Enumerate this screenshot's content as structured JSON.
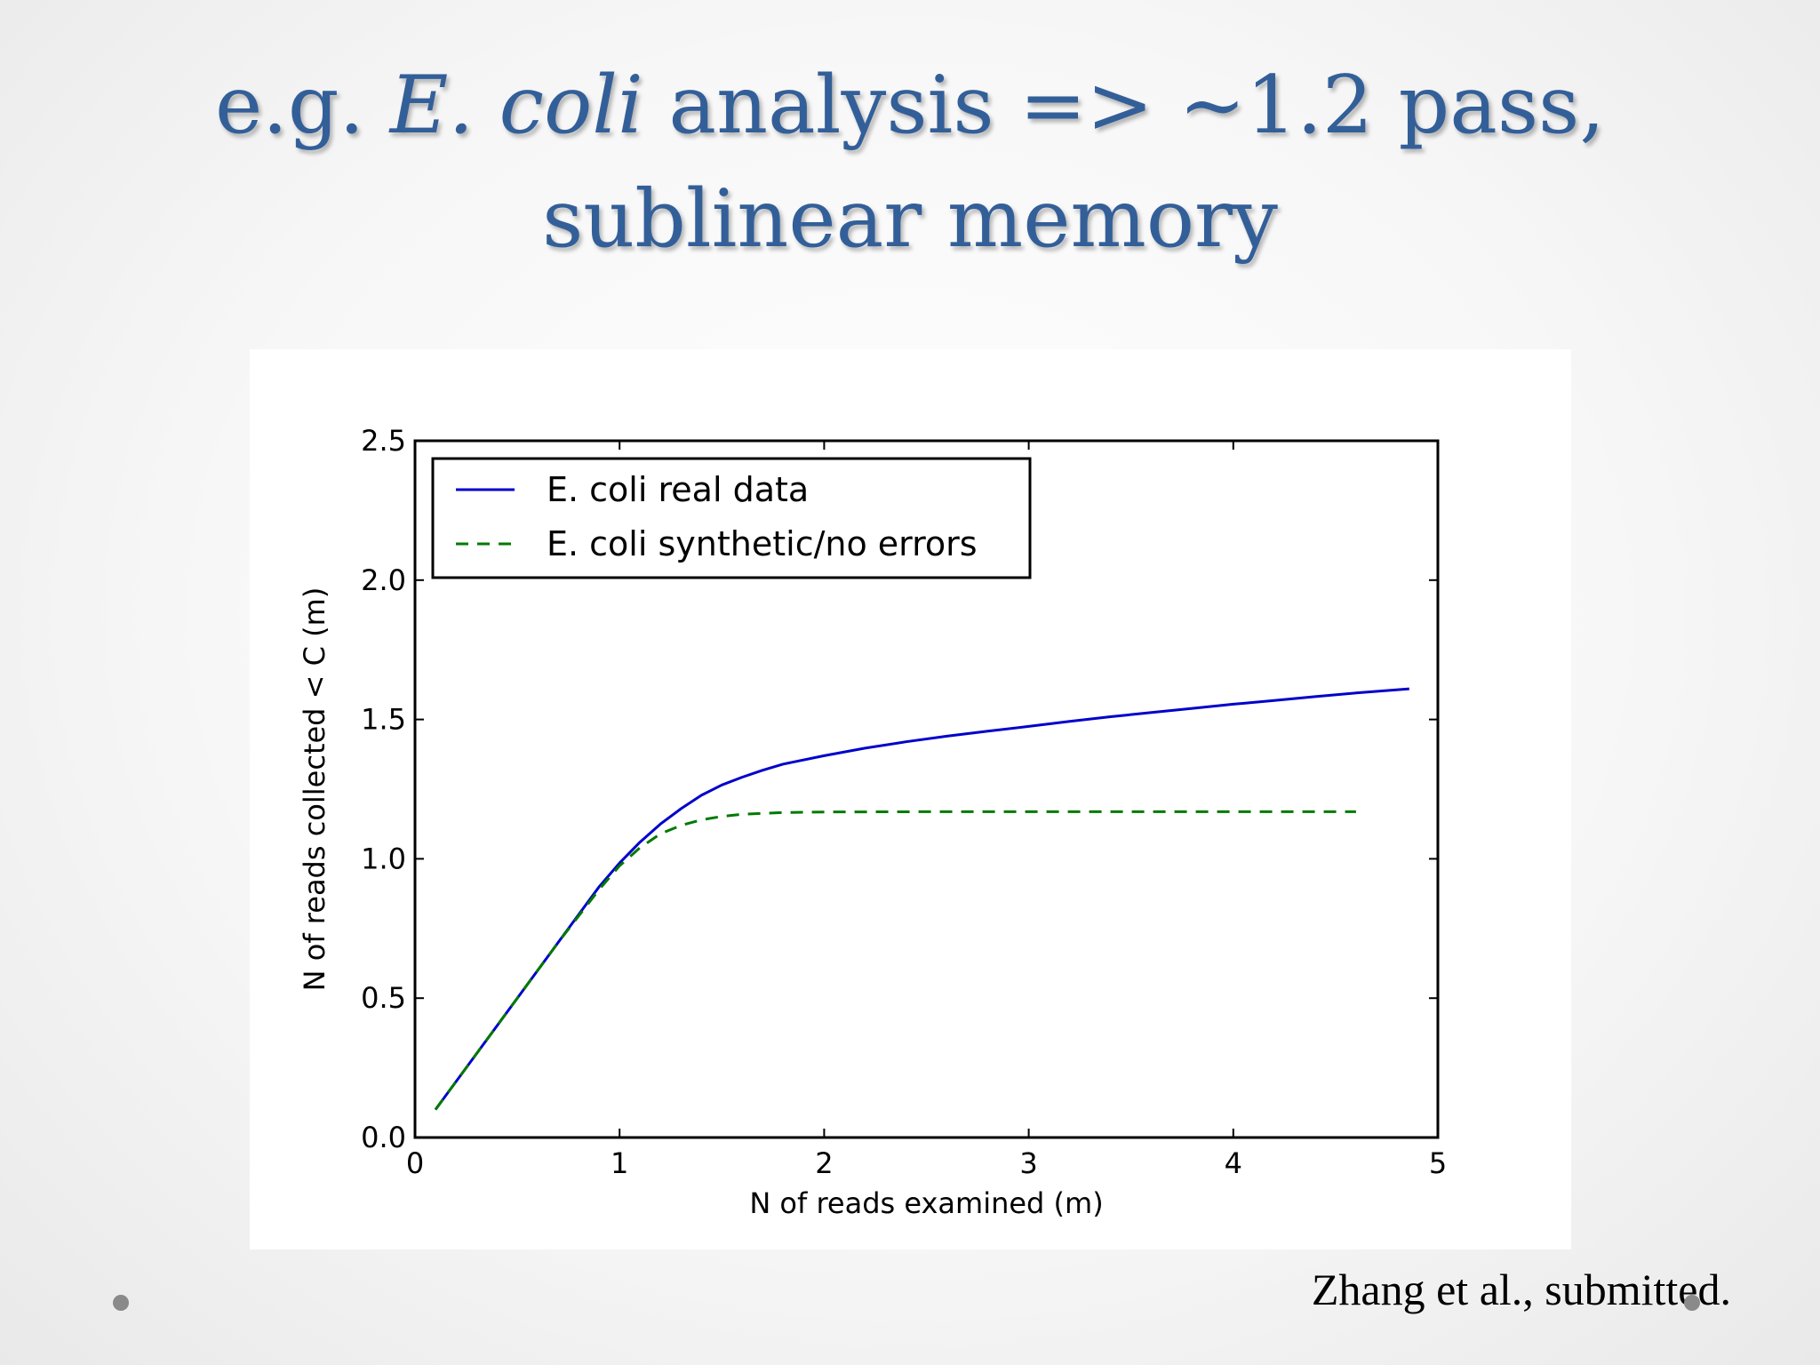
{
  "slide": {
    "title_line1_prefix": "e.g. ",
    "title_line1_italic": "E. coli",
    "title_line1_suffix": " analysis => ~1.2 pass,",
    "title_line2": "sublinear memory",
    "citation": "Zhang et al., submitted."
  },
  "colors": {
    "title": "#335f99",
    "series_real": "#0000cc",
    "series_synthetic": "#007a00"
  },
  "chart_data": {
    "type": "line",
    "title": "",
    "xlabel": "N of reads examined (m)",
    "ylabel": "N of reads collected < C (m)",
    "xlim": [
      0,
      5
    ],
    "ylim": [
      0,
      2.5
    ],
    "xticks": [
      0,
      1,
      2,
      3,
      4,
      5
    ],
    "xtick_labels": [
      "0",
      "1",
      "2",
      "3",
      "4",
      "5"
    ],
    "yticks": [
      0,
      0.5,
      1.0,
      1.5,
      2.0,
      2.5
    ],
    "ytick_labels": [
      "0.0",
      "0.5",
      "1.0",
      "1.5",
      "2.0",
      "2.5"
    ],
    "grid": false,
    "legend_position": "top-left",
    "series": [
      {
        "name": "E. coli real data",
        "style": "solid",
        "x": [
          0.1,
          0.3,
          0.5,
          0.7,
          0.9,
          1.0,
          1.1,
          1.2,
          1.3,
          1.4,
          1.5,
          1.6,
          1.7,
          1.8,
          2.0,
          2.2,
          2.4,
          2.6,
          2.8,
          3.0,
          3.2,
          3.4,
          3.6,
          3.8,
          4.0,
          4.2,
          4.4,
          4.6,
          4.86
        ],
        "y": [
          0.1,
          0.3,
          0.5,
          0.7,
          0.9,
          0.985,
          1.06,
          1.125,
          1.18,
          1.228,
          1.265,
          1.293,
          1.318,
          1.34,
          1.37,
          1.397,
          1.42,
          1.44,
          1.458,
          1.475,
          1.493,
          1.51,
          1.525,
          1.54,
          1.555,
          1.568,
          1.582,
          1.595,
          1.61
        ]
      },
      {
        "name": "E. coli synthetic/no errors",
        "style": "dashed",
        "x": [
          0.1,
          0.3,
          0.5,
          0.7,
          0.9,
          1.0,
          1.1,
          1.2,
          1.3,
          1.4,
          1.5,
          1.6,
          1.8,
          2.0,
          2.5,
          3.0,
          3.5,
          4.0,
          4.6
        ],
        "y": [
          0.1,
          0.3,
          0.5,
          0.7,
          0.89,
          0.975,
          1.04,
          1.09,
          1.12,
          1.14,
          1.152,
          1.16,
          1.166,
          1.168,
          1.169,
          1.169,
          1.169,
          1.169,
          1.169
        ]
      }
    ]
  }
}
